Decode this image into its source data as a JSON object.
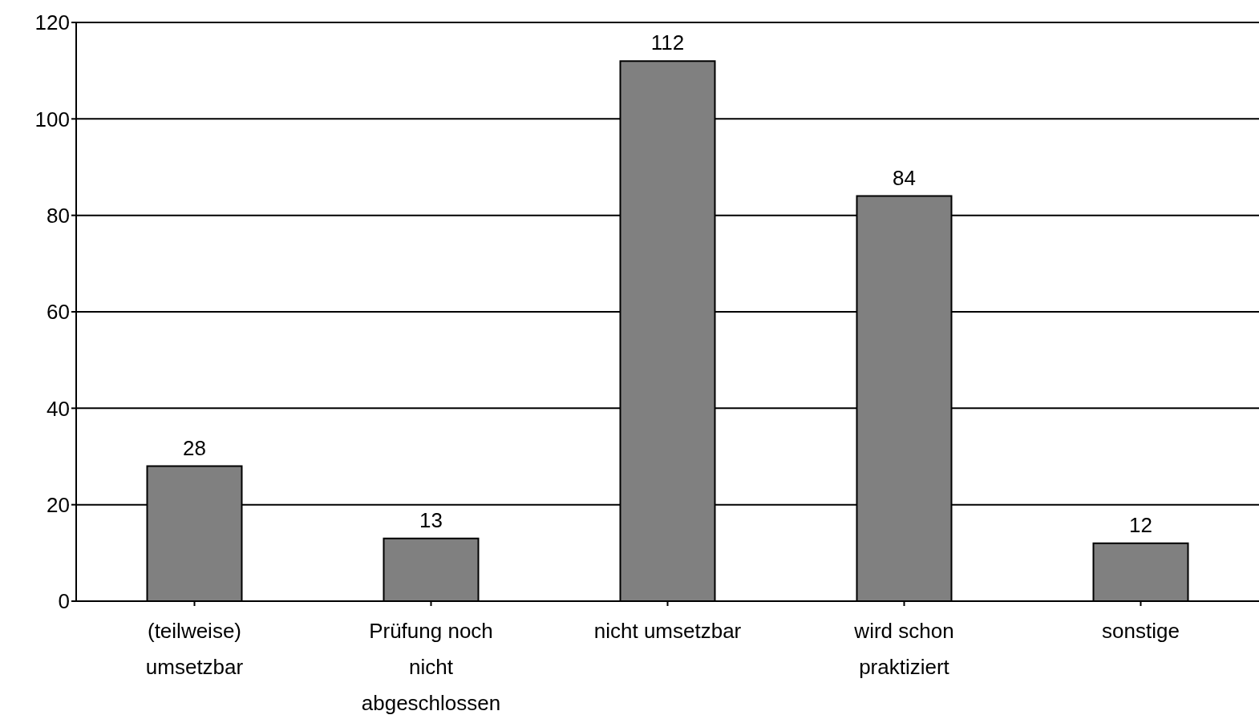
{
  "chart_data": {
    "type": "bar",
    "categories": [
      "(teilweise) umsetzbar",
      "Prüfung noch nicht abgeschlossen",
      "nicht umsetzbar",
      "wird schon praktiziert",
      "sonstige"
    ],
    "values": [
      28,
      13,
      112,
      84,
      12
    ],
    "color": "#808080",
    "ylim": [
      0,
      120
    ],
    "yticks": [
      0,
      20,
      40,
      60,
      80,
      100,
      120
    ],
    "grid": "y",
    "data_labels": true
  }
}
